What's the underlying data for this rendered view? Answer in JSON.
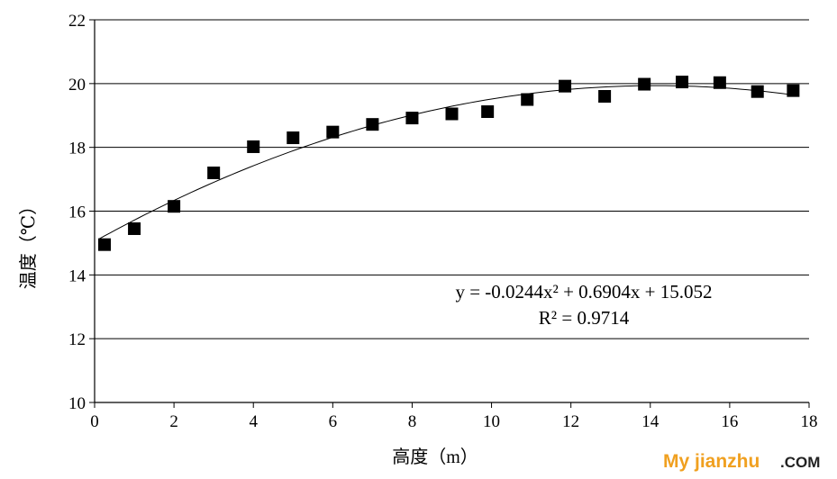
{
  "chart_data": {
    "type": "scatter",
    "title": "",
    "xlabel": "高度（m）",
    "ylabel": "温度（℃）",
    "xlim": [
      0,
      18
    ],
    "ylim": [
      10,
      22
    ],
    "xticks": [
      "0",
      "2",
      "4",
      "6",
      "8",
      "10",
      "12",
      "14",
      "16",
      "18"
    ],
    "yticks": [
      "10",
      "12",
      "14",
      "16",
      "18",
      "20",
      "22"
    ],
    "grid": "horizontal",
    "legend": "none",
    "marker": "square",
    "marker_color": "#000000",
    "series": [
      {
        "x": [
          0.25,
          1.0,
          2.0,
          3.0,
          4.0,
          5.0,
          6.0,
          7.0,
          8.0,
          9.0,
          9.9,
          10.9,
          11.85,
          12.85,
          13.85,
          14.8,
          15.75,
          16.7,
          17.6
        ],
        "y": [
          14.95,
          15.45,
          16.15,
          17.2,
          18.02,
          18.3,
          18.48,
          18.72,
          18.92,
          19.05,
          19.12,
          19.5,
          19.92,
          19.6,
          19.98,
          20.05,
          20.03,
          19.75,
          19.78
        ]
      }
    ],
    "trendline": {
      "type": "polynomial",
      "a": -0.0244,
      "b": 0.6904,
      "c": 15.052,
      "x_range": [
        0.1,
        17.6
      ]
    },
    "annotation": {
      "equation": "y = -0.0244x² + 0.6904x + 15.052",
      "r_squared": "R² = 0.9714"
    }
  },
  "watermark": {
    "brand": "My jianzhu",
    "suffix": ".COM"
  }
}
